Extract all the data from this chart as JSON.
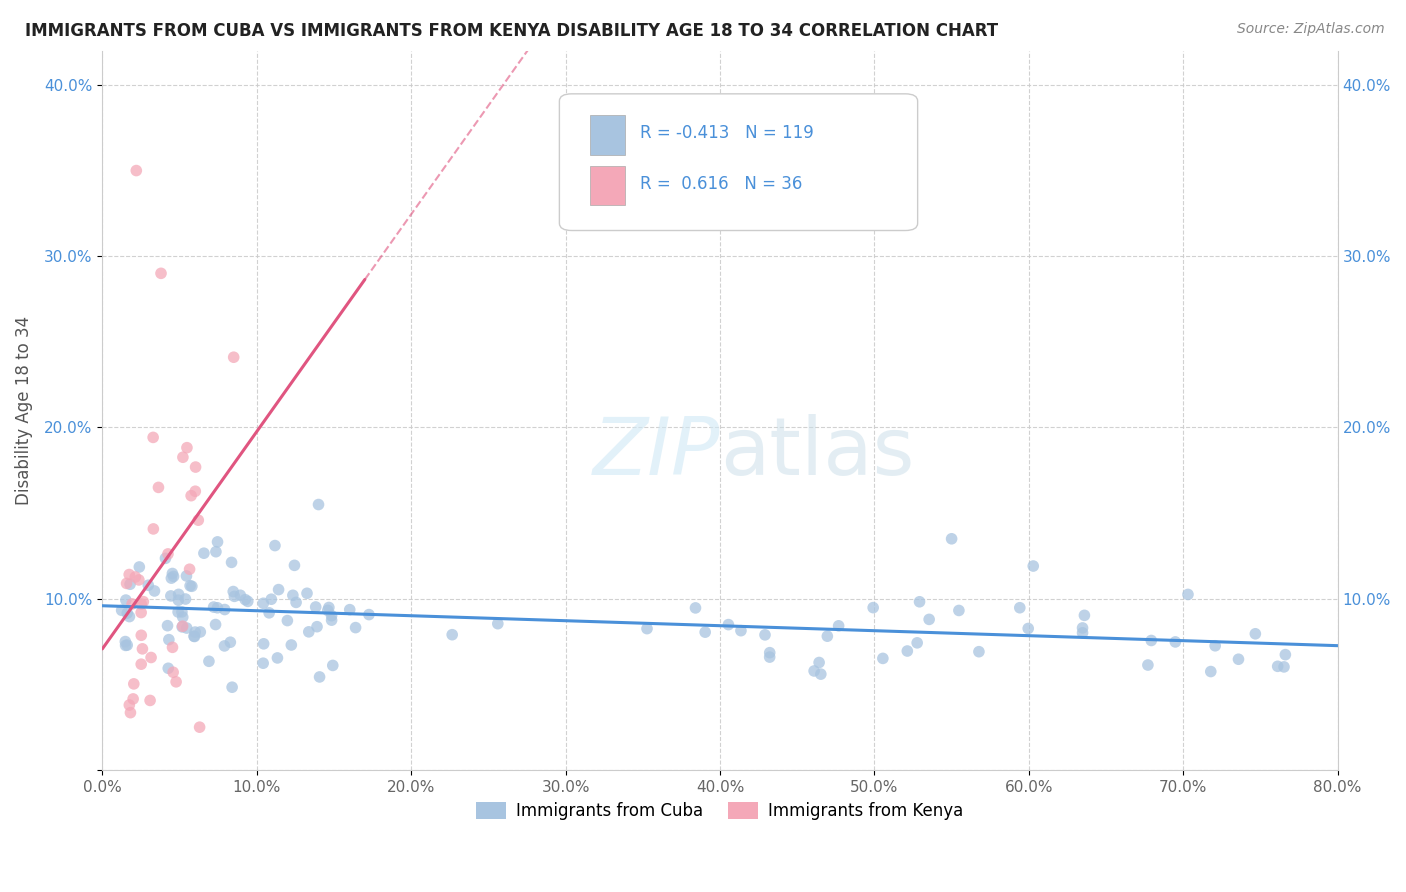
{
  "title": "IMMIGRANTS FROM CUBA VS IMMIGRANTS FROM KENYA DISABILITY AGE 18 TO 34 CORRELATION CHART",
  "source": "Source: ZipAtlas.com",
  "ylabel": "Disability Age 18 to 34",
  "legend_label1": "Immigrants from Cuba",
  "legend_label2": "Immigrants from Kenya",
  "r1": -0.413,
  "n1": 119,
  "r2": 0.616,
  "n2": 36,
  "color1": "#a8c4e0",
  "color2": "#f4a8b8",
  "line_color1": "#4a90d9",
  "line_color2": "#e05580",
  "xlim": [
    0.0,
    0.8
  ],
  "ylim": [
    0.0,
    0.42
  ],
  "x_ticks": [
    0.0,
    0.1,
    0.2,
    0.3,
    0.4,
    0.5,
    0.6,
    0.7,
    0.8
  ],
  "y_ticks": [
    0.0,
    0.1,
    0.2,
    0.3,
    0.4
  ],
  "x_tick_labels": [
    "0.0%",
    "10.0%",
    "20.0%",
    "30.0%",
    "40.0%",
    "50.0%",
    "60.0%",
    "70.0%",
    "80.0%"
  ],
  "y_tick_labels": [
    "",
    "10.0%",
    "20.0%",
    "30.0%",
    "40.0%"
  ],
  "right_y_tick_labels": [
    "",
    "10.0%",
    "20.0%",
    "30.0%",
    "40.0%"
  ],
  "watermark": "ZIPatlas",
  "background_color": "#ffffff",
  "grid_color": "#cccccc"
}
